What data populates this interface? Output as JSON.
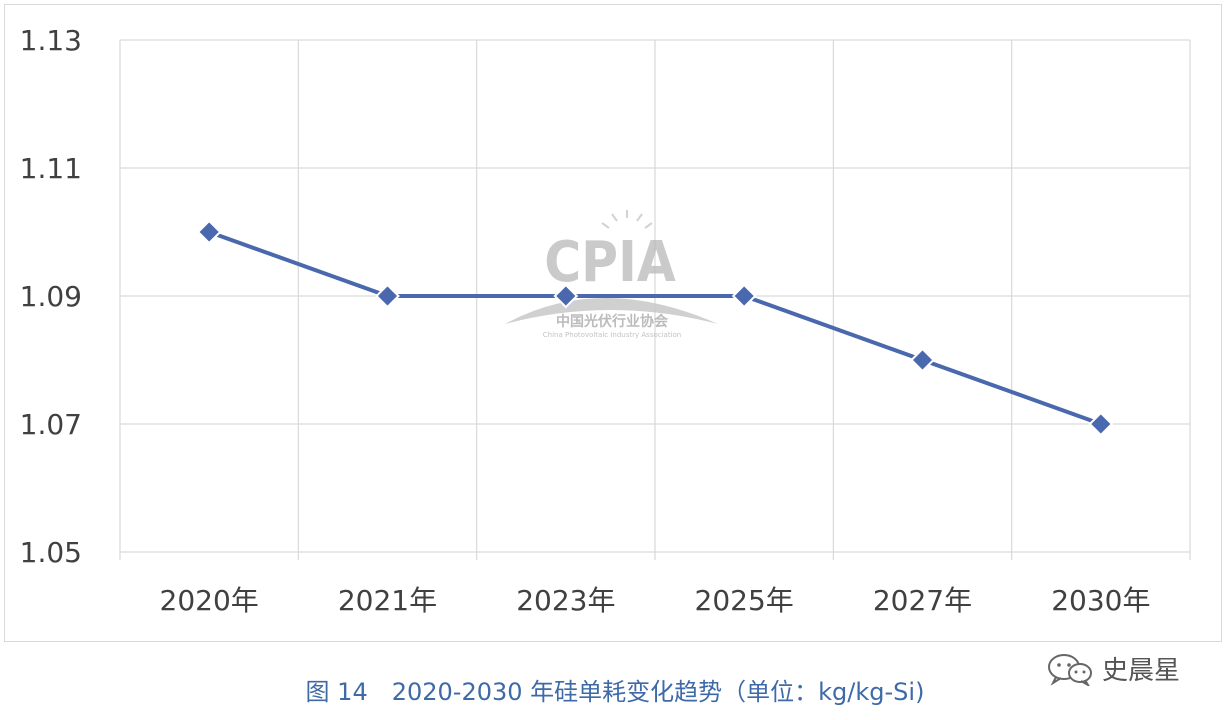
{
  "chart_data": {
    "type": "line",
    "categories": [
      "2020年",
      "2021年",
      "2023年",
      "2025年",
      "2027年",
      "2030年"
    ],
    "series": [
      {
        "values": [
          1.1,
          1.09,
          1.09,
          1.09,
          1.08,
          1.07
        ],
        "color": "#4a68ad",
        "marker": "diamond"
      }
    ],
    "yticks": [
      "1.13",
      "1.11",
      "1.09",
      "1.07",
      "1.05"
    ],
    "ylim": [
      1.05,
      1.13
    ],
    "grid": true,
    "title": "",
    "xlabel": "",
    "ylabel": ""
  },
  "watermark": {
    "logo_text": "CPIA",
    "cn_text": "中国光伏行业协会",
    "en_text": "China Photovoltaic Industry Association"
  },
  "caption": "图 14　2020-2030 年硅单耗变化趋势（单位：kg/kg-Si)",
  "signature": {
    "icon": "wechat-icon",
    "text": "史晨星"
  },
  "colors": {
    "line": "#4a68ad",
    "grid": "#d9d9d9",
    "caption": "#3f6aa8"
  }
}
